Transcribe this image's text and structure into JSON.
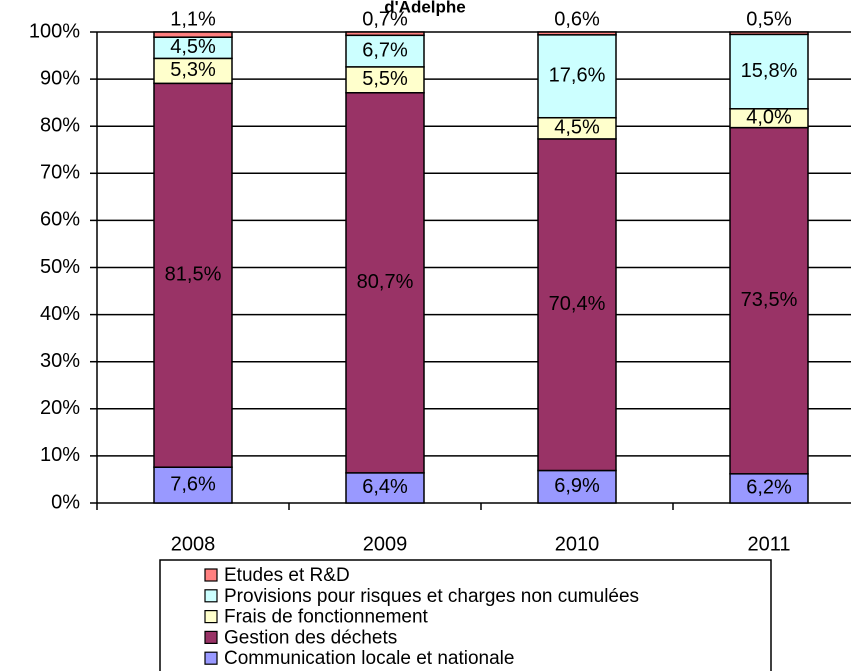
{
  "chart_data": {
    "type": "stacked_bar",
    "title": "d'Adelphe",
    "categories": [
      "2008",
      "2009",
      "2010",
      "2011"
    ],
    "series": [
      {
        "name": "Communication locale et nationale",
        "color": "#9999ff",
        "values": [
          7.6,
          6.4,
          6.9,
          6.2
        ],
        "value_labels": [
          "7,6%",
          "6,4%",
          "6,9%",
          "6,2%"
        ]
      },
      {
        "name": "Gestion des déchets",
        "color": "#993366",
        "values": [
          81.5,
          80.7,
          70.4,
          73.5
        ],
        "value_labels": [
          "81,5%",
          "80,7%",
          "70,4%",
          "73,5%"
        ]
      },
      {
        "name": "Frais de fonctionnement",
        "color": "#ffffcc",
        "values": [
          5.3,
          5.5,
          4.5,
          4.0
        ],
        "value_labels": [
          "5,3%",
          "5,5%",
          "4,5%",
          "4,0%"
        ]
      },
      {
        "name": "Provisions pour risques et charges non cumulées",
        "color": "#ccffff",
        "values": [
          4.5,
          6.7,
          17.6,
          15.8
        ],
        "value_labels": [
          "4,5%",
          "6,7%",
          "17,6%",
          "15,8%"
        ]
      },
      {
        "name": "Etudes et R&D",
        "color": "#ff8080",
        "values": [
          1.1,
          0.7,
          0.6,
          0.5
        ],
        "value_labels": [
          "1,1%",
          "0,7%",
          "0,6%",
          "0,5%"
        ]
      }
    ],
    "ylim": [
      0,
      100
    ],
    "yticks": [
      {
        "value": 0,
        "label": "0%"
      },
      {
        "value": 10,
        "label": "10%"
      },
      {
        "value": 20,
        "label": "20%"
      },
      {
        "value": 30,
        "label": "30%"
      },
      {
        "value": 40,
        "label": "40%"
      },
      {
        "value": 50,
        "label": "50%"
      },
      {
        "value": 60,
        "label": "60%"
      },
      {
        "value": 70,
        "label": "70%"
      },
      {
        "value": 80,
        "label": "80%"
      },
      {
        "value": 90,
        "label": "90%"
      },
      {
        "value": 100,
        "label": "100%"
      }
    ],
    "grid": true,
    "legend": "bottom"
  }
}
